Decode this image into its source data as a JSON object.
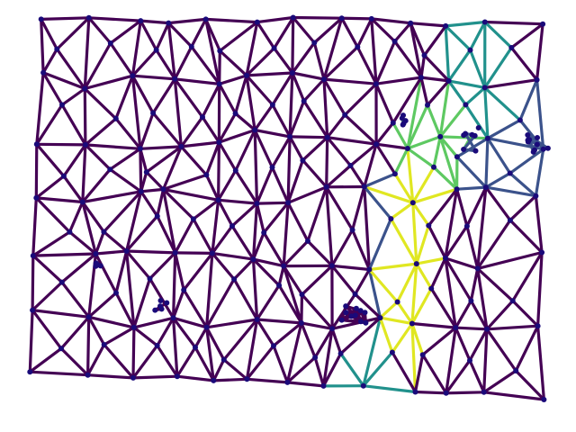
{
  "diagram": {
    "type": "triangulated-mesh-graph",
    "colormap": "viridis",
    "colors": {
      "background": "#ffffff",
      "node": "#1a0a7a",
      "edge_low": "#440154",
      "edge_mid_low": "#3b528b",
      "edge_mid": "#21918c",
      "edge_mid_high": "#5ec962",
      "edge_high": "#e0e722"
    }
  }
}
